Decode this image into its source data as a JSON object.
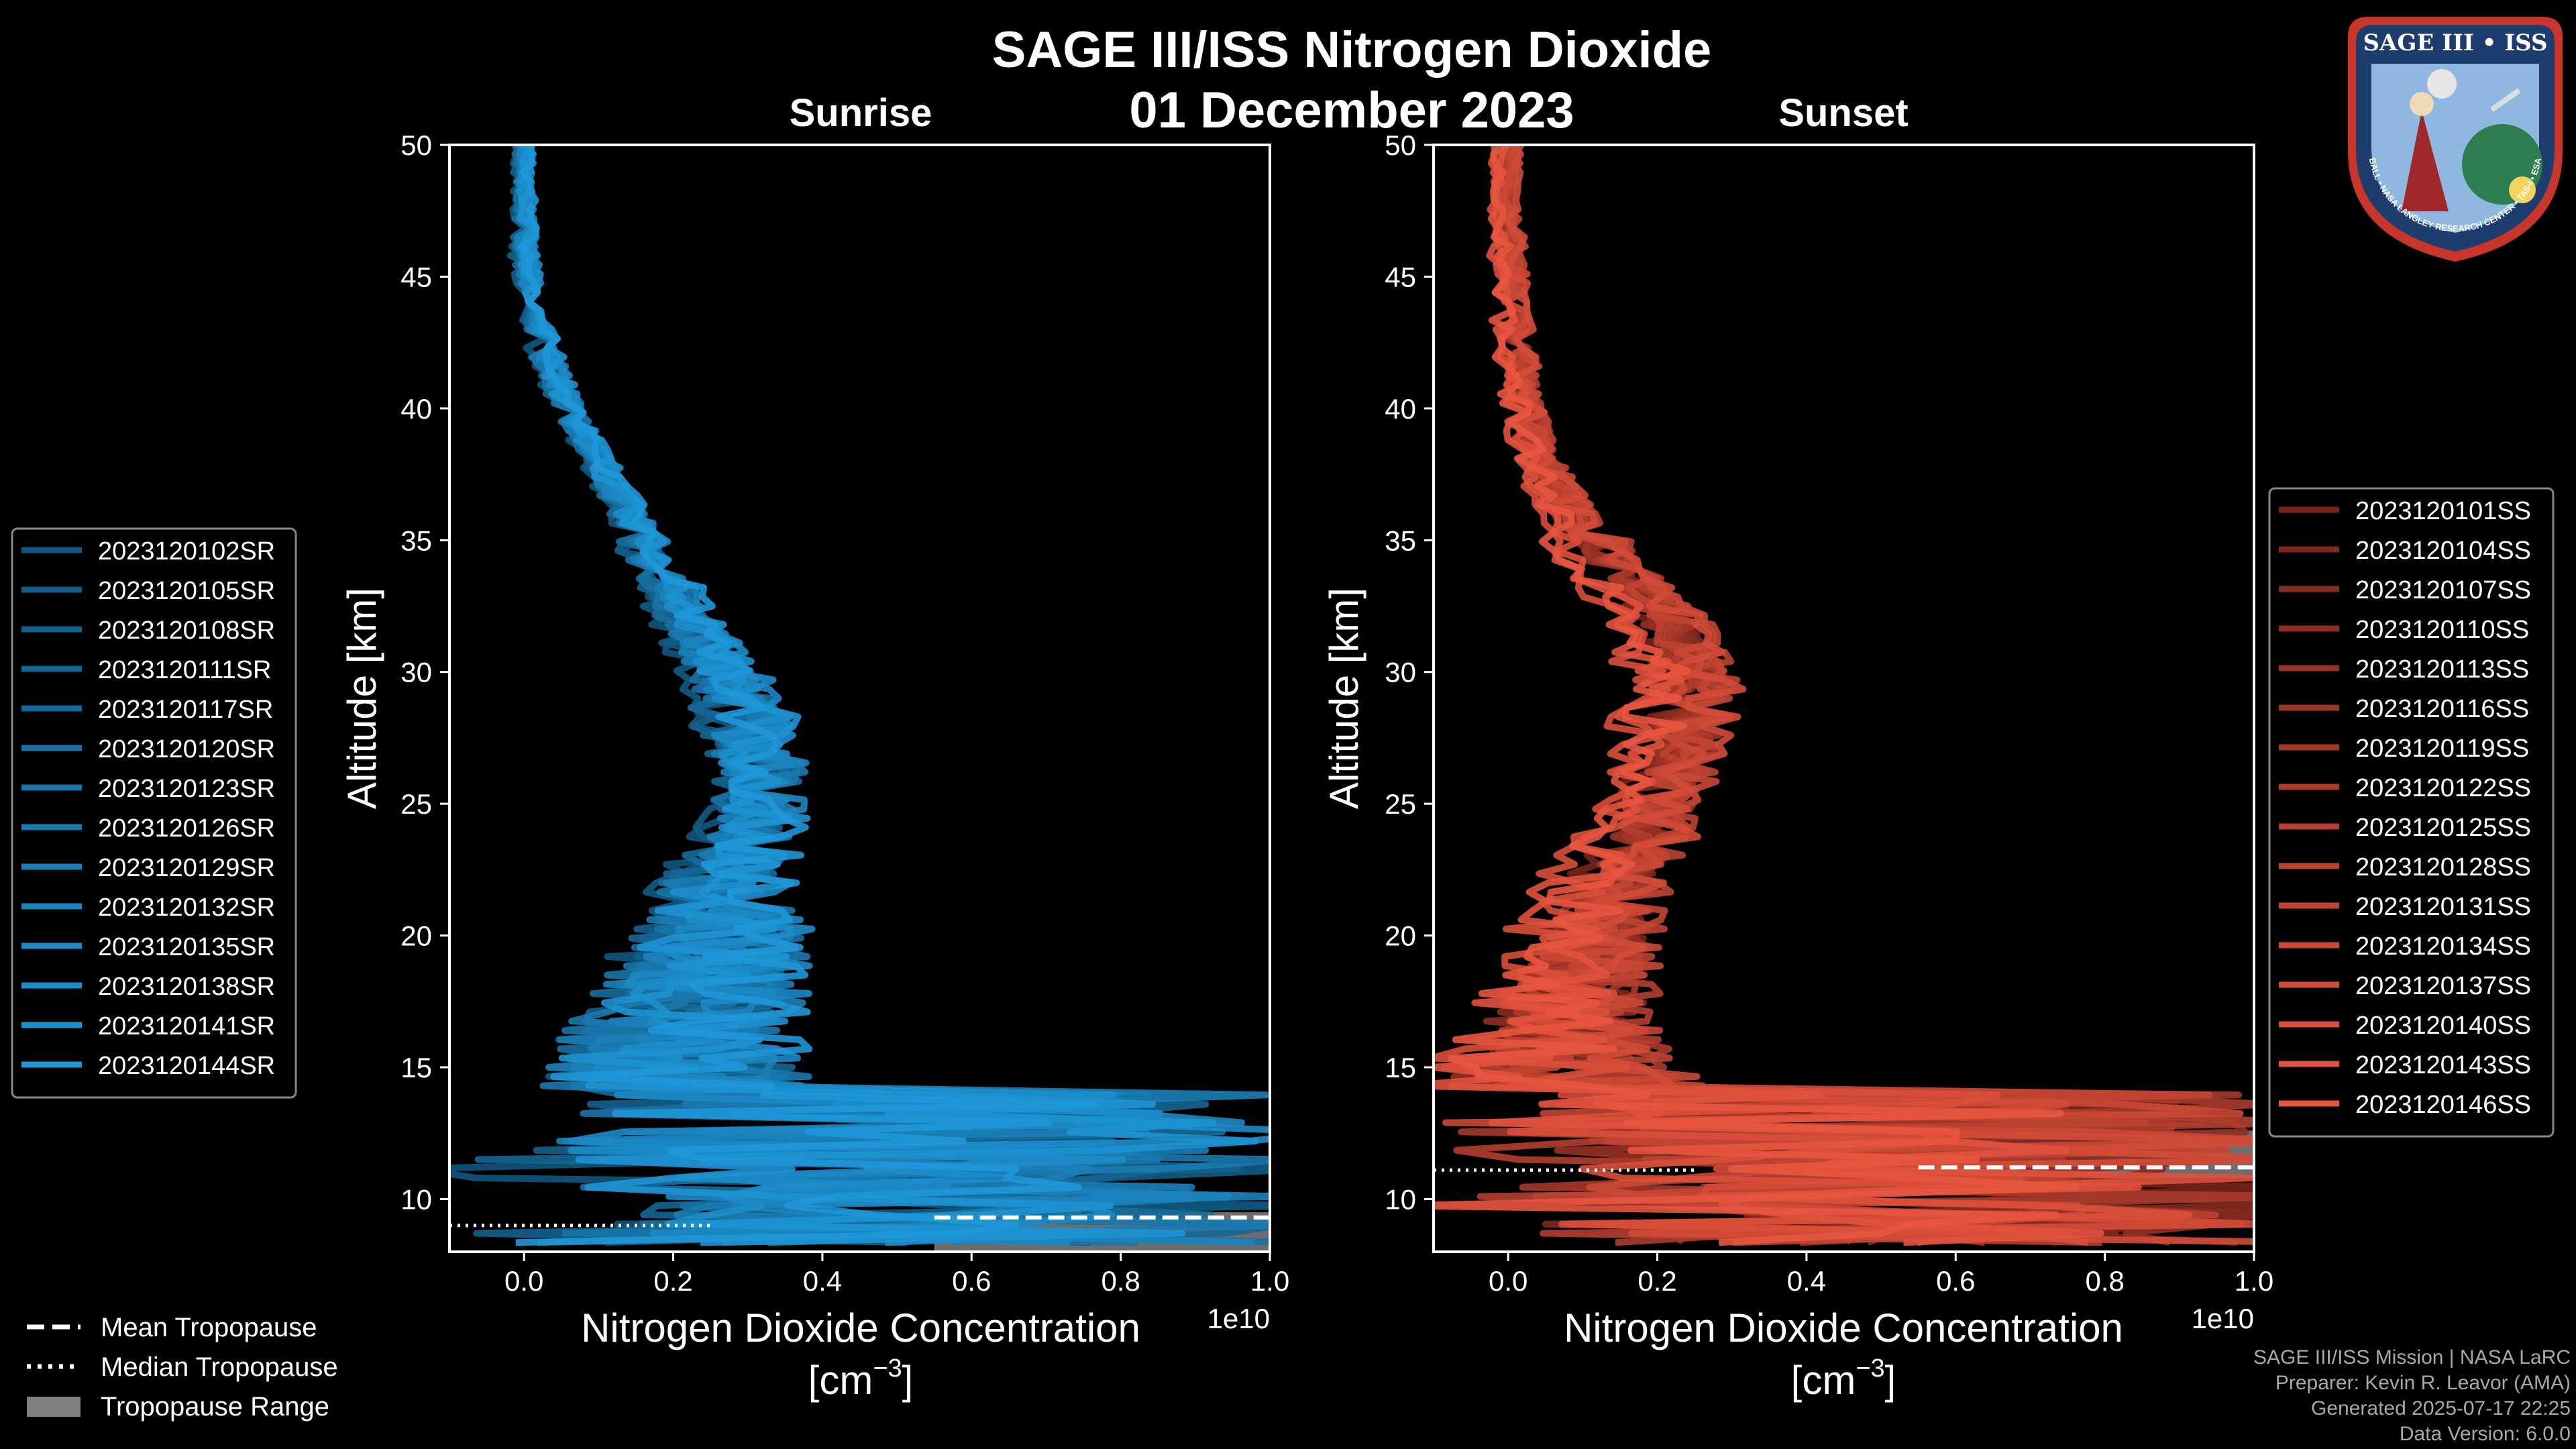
{
  "title": "SAGE III/ISS Nitrogen Dioxide",
  "date": "01 December 2023",
  "panels": {
    "sunrise": {
      "label": "Sunrise"
    },
    "sunset": {
      "label": "Sunset"
    }
  },
  "axes": {
    "xlabel_line1": "Nitrogen Dioxide Concentration",
    "xlabel_line2": "[cm",
    "xlabel_exp": "−3",
    "xlabel_close": "]",
    "ylabel": "Altitude [km]",
    "x_multiplier": "1e10",
    "xlim": [
      -0.1,
      1.0
    ],
    "ylim": [
      8,
      50
    ],
    "xticks": [
      "0.0",
      "0.2",
      "0.4",
      "0.6",
      "0.8",
      "1.0"
    ],
    "xtick_values": [
      0,
      0.2,
      0.4,
      0.6,
      0.8,
      1.0
    ],
    "yticks": [
      10,
      15,
      20,
      25,
      30,
      35,
      40,
      45,
      50
    ]
  },
  "tropopause_legend": {
    "mean": "Mean Tropopause",
    "median": "Median Tropopause",
    "range": "Tropopause Range"
  },
  "logo": {
    "text": "SAGE III • ISS",
    "ring_text": "BALL • NASA LANGLEY RESEARCH CENTER • TAS-I • ESA"
  },
  "credits": [
    "SAGE III/ISS Mission | NASA LaRC",
    "Preparer: Kevin R. Leavor (AMA)",
    "Generated 2025-07-17 22:25",
    "Data Version: 6.0.0"
  ],
  "colors": {
    "background": "#000000",
    "sunrise": "#1f97d8",
    "sunset": "#e8553f",
    "tropopause_range": "#808080"
  },
  "chart_data": [
    {
      "type": "line",
      "panel": "Sunrise",
      "xlabel": "Nitrogen Dioxide Concentration [cm−3]",
      "ylabel": "Altitude [km]",
      "xlim": [
        -0.1,
        1.0
      ],
      "ylim": [
        8,
        50
      ],
      "x_scale_label": "1e10",
      "grid": false,
      "legend_position": "left",
      "profile_envelope": {
        "altitude": [
          50,
          48,
          46,
          44,
          42,
          40,
          38,
          36,
          34,
          32,
          30,
          28,
          26,
          24,
          22,
          20,
          18,
          16,
          14
        ],
        "mean": [
          0.0,
          0.0,
          0.0,
          0.01,
          0.03,
          0.06,
          0.1,
          0.14,
          0.18,
          0.22,
          0.27,
          0.3,
          0.32,
          0.3,
          0.27,
          0.26,
          0.24,
          0.2,
          0.2
        ],
        "spread": [
          0.01,
          0.01,
          0.015,
          0.015,
          0.02,
          0.02,
          0.02,
          0.025,
          0.03,
          0.035,
          0.05,
          0.06,
          0.06,
          0.06,
          0.08,
          0.12,
          0.14,
          0.16,
          0.2
        ]
      },
      "series": [
        {
          "name": "2023120102SR"
        },
        {
          "name": "2023120105SR"
        },
        {
          "name": "2023120108SR"
        },
        {
          "name": "2023120111SR"
        },
        {
          "name": "2023120117SR"
        },
        {
          "name": "2023120120SR"
        },
        {
          "name": "2023120123SR"
        },
        {
          "name": "2023120126SR"
        },
        {
          "name": "2023120129SR"
        },
        {
          "name": "2023120132SR"
        },
        {
          "name": "2023120135SR"
        },
        {
          "name": "2023120138SR"
        },
        {
          "name": "2023120141SR"
        },
        {
          "name": "2023120144SR"
        }
      ],
      "tropopause": {
        "mean": 9.3,
        "median": 9.0,
        "range": [
          8.0,
          9.5
        ]
      }
    },
    {
      "type": "line",
      "panel": "Sunset",
      "xlabel": "Nitrogen Dioxide Concentration [cm−3]",
      "ylabel": "Altitude [km]",
      "xlim": [
        -0.1,
        1.0
      ],
      "ylim": [
        8,
        50
      ],
      "x_scale_label": "1e10",
      "grid": false,
      "legend_position": "right",
      "profile_envelope": {
        "altitude": [
          50,
          48,
          46,
          44,
          42,
          40,
          38,
          36,
          34,
          32,
          30,
          28,
          26,
          24,
          22,
          20,
          18,
          16,
          14
        ],
        "mean": [
          0.0,
          -0.01,
          0.0,
          0.0,
          0.01,
          0.02,
          0.04,
          0.08,
          0.13,
          0.2,
          0.23,
          0.22,
          0.2,
          0.17,
          0.13,
          0.1,
          0.08,
          0.06,
          0.06
        ],
        "spread": [
          0.01,
          0.01,
          0.015,
          0.015,
          0.02,
          0.02,
          0.025,
          0.03,
          0.035,
          0.04,
          0.05,
          0.05,
          0.05,
          0.05,
          0.06,
          0.08,
          0.1,
          0.12,
          0.2
        ]
      },
      "series": [
        {
          "name": "2023120101SS"
        },
        {
          "name": "2023120104SS"
        },
        {
          "name": "2023120107SS"
        },
        {
          "name": "2023120110SS"
        },
        {
          "name": "2023120113SS"
        },
        {
          "name": "2023120116SS"
        },
        {
          "name": "2023120119SS"
        },
        {
          "name": "2023120122SS"
        },
        {
          "name": "2023120125SS"
        },
        {
          "name": "2023120128SS"
        },
        {
          "name": "2023120131SS"
        },
        {
          "name": "2023120134SS"
        },
        {
          "name": "2023120137SS"
        },
        {
          "name": "2023120140SS"
        },
        {
          "name": "2023120143SS"
        },
        {
          "name": "2023120146SS"
        }
      ],
      "tropopause": {
        "mean": 11.2,
        "median": 11.1,
        "range": [
          10.8,
          12.6
        ]
      }
    }
  ]
}
